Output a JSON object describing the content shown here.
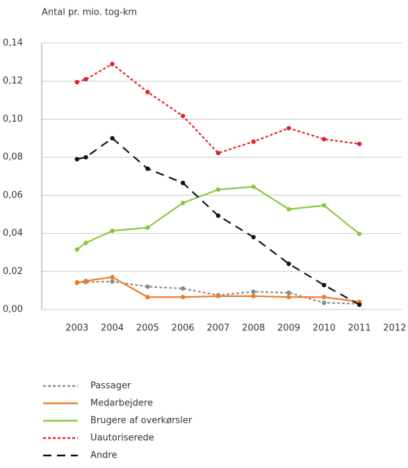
{
  "chart_data": {
    "type": "line",
    "y_label": "Antal pr. mio. tog-km",
    "x": [
      2003,
      2003.25,
      2004,
      2005,
      2006,
      2007,
      2008,
      2009,
      2010,
      2011
    ],
    "xlim": [
      2002,
      2012.2
    ],
    "xticks": [
      2003,
      2004,
      2005,
      2006,
      2007,
      2008,
      2009,
      2010,
      2011,
      2012
    ],
    "ylim": [
      0,
      0.14
    ],
    "yticks": [
      {
        "value": 0,
        "label": "0,00"
      },
      {
        "value": 0.02,
        "label": "0,02"
      },
      {
        "value": 0.04,
        "label": "0,04"
      },
      {
        "value": 0.06,
        "label": "0,06"
      },
      {
        "value": 0.08,
        "label": "0,08"
      },
      {
        "value": 0.1,
        "label": "0,10"
      },
      {
        "value": 0.12,
        "label": "0,12"
      },
      {
        "value": 0.14,
        "label": "0,14"
      }
    ],
    "grid": true,
    "series": [
      {
        "name": "Passager",
        "color": "#8a8a8a",
        "dash": "4 3",
        "values": [
          0.0142,
          0.0144,
          0.0147,
          0.012,
          0.011,
          0.0075,
          0.0093,
          0.0088,
          0.0035,
          0.003
        ]
      },
      {
        "name": "Medarbejdere",
        "color": "#f07a24",
        "dash": "none",
        "values": [
          0.014,
          0.015,
          0.017,
          0.0065,
          0.0065,
          0.007,
          0.007,
          0.0065,
          0.0065,
          0.004
        ]
      },
      {
        "name": "Brugere af overkørsler",
        "color": "#8cc63f",
        "dash": "none",
        "values": [
          0.0315,
          0.035,
          0.0413,
          0.043,
          0.056,
          0.063,
          0.0645,
          0.0527,
          0.0547,
          0.0397
        ]
      },
      {
        "name": "Uautoriserede",
        "color": "#e3202a",
        "dash": "4 3",
        "values": [
          0.1195,
          0.121,
          0.129,
          0.1143,
          0.1017,
          0.0822,
          0.0882,
          0.0953,
          0.0895,
          0.087
        ]
      },
      {
        "name": "Andre",
        "color": "#111111",
        "dash": "12 8",
        "values": [
          0.079,
          0.08,
          0.09,
          0.074,
          0.0665,
          0.0493,
          0.038,
          0.024,
          0.0128,
          0.0025
        ]
      }
    ]
  }
}
